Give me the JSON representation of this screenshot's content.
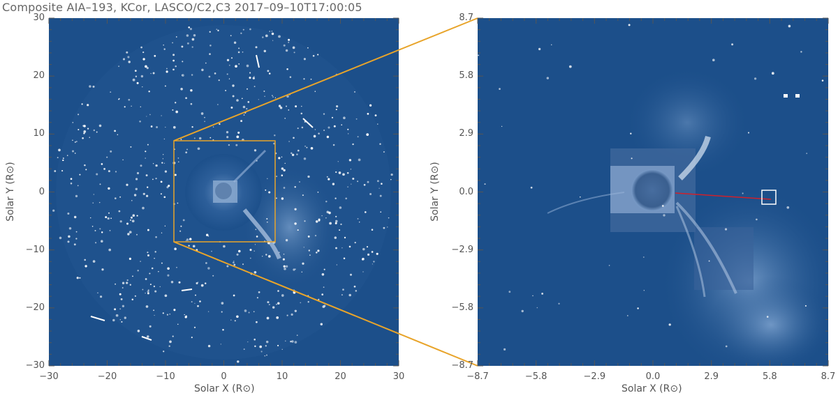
{
  "title": "Composite AIA–193, KCor, LASCO/C2,C3 2017–09–10T17:00:05",
  "colors": {
    "background_blue": "#1c4f8a",
    "zoom_box": "#e8a42a",
    "trajectory": "#d0202a",
    "marker_box": "#ffffff"
  },
  "left_panel": {
    "x_ticks": [
      "−30",
      "−20",
      "−10",
      "0",
      "10",
      "20",
      "30"
    ],
    "y_ticks": [
      "30",
      "20",
      "10",
      "0",
      "−10",
      "−20",
      "−30"
    ],
    "x_label": "Solar X (R⊙)",
    "y_label": "Solar Y (R⊙)",
    "xlim": [
      -30,
      30
    ],
    "ylim": [
      -30,
      30
    ]
  },
  "right_panel": {
    "x_ticks": [
      "−8.7",
      "−5.8",
      "−2.9",
      "0.0",
      "2.9",
      "5.8",
      "8.7"
    ],
    "y_ticks": [
      "8.7",
      "5.8",
      "2.9",
      "0.0",
      "−2.9",
      "−5.8",
      "−8.7"
    ],
    "x_label": "Solar X (R⊙)",
    "y_label": "Solar Y (R⊙)",
    "xlim": [
      -8.7,
      8.7
    ],
    "ylim": [
      -8.7,
      8.7
    ]
  }
}
